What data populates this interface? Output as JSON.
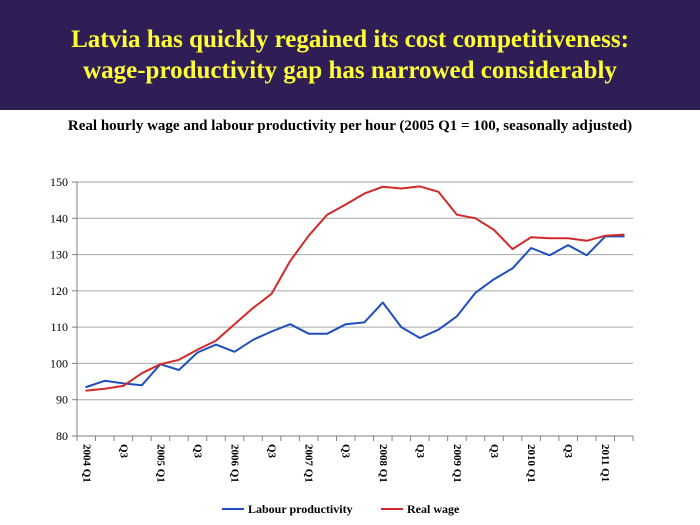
{
  "header": {
    "title_line1": "Latvia has quickly regained its cost competitiveness:",
    "title_line2": "wage-productivity gap has narrowed considerably"
  },
  "colors": {
    "band": "#2f1e55",
    "title": "#ffff33",
    "productivity": "#1f4fbf",
    "wage": "#d12a2a"
  },
  "chart_data": {
    "type": "line",
    "title": "Real hourly wage and labour productivity per hour (2005 Q1 = 100, seasonally adjusted)",
    "xlabel": "",
    "ylabel": "",
    "ylim": [
      80,
      150
    ],
    "yticks": [
      80,
      90,
      100,
      110,
      120,
      130,
      140,
      150
    ],
    "grid": true,
    "legend": "bottom",
    "tick_labels": [
      {
        "index": 0,
        "label": "2004 Q1"
      },
      {
        "index": 2,
        "label": "Q3"
      },
      {
        "index": 4,
        "label": "2005 Q1"
      },
      {
        "index": 6,
        "label": "Q3"
      },
      {
        "index": 8,
        "label": "2006 Q1"
      },
      {
        "index": 10,
        "label": "Q3"
      },
      {
        "index": 12,
        "label": "2007 Q1"
      },
      {
        "index": 14,
        "label": "Q3"
      },
      {
        "index": 16,
        "label": "2008 Q1"
      },
      {
        "index": 18,
        "label": "Q3"
      },
      {
        "index": 20,
        "label": "2009 Q1"
      },
      {
        "index": 22,
        "label": "Q3"
      },
      {
        "index": 24,
        "label": "2010 Q1"
      },
      {
        "index": 26,
        "label": "Q3"
      },
      {
        "index": 28,
        "label": "2011 Q1"
      }
    ],
    "series": [
      {
        "name": "Labour productivity",
        "values": [
          93.5,
          95.2,
          94.5,
          94.0,
          99.8,
          98.2,
          103.0,
          105.2,
          103.2,
          106.5,
          108.8,
          110.8,
          108.2,
          108.2,
          110.8,
          111.3,
          116.8,
          110.0,
          107.0,
          109.3,
          113.0,
          119.5,
          123.2,
          126.2,
          131.8,
          129.8,
          132.6,
          129.8,
          135.0,
          135.0
        ]
      },
      {
        "name": "Real wage",
        "values": [
          92.5,
          93.0,
          93.8,
          97.3,
          99.8,
          101.0,
          103.8,
          106.3,
          110.8,
          115.3,
          119.2,
          128.2,
          135.2,
          141.0,
          143.8,
          146.8,
          148.7,
          148.2,
          148.8,
          147.3,
          141.0,
          140.0,
          136.8,
          131.5,
          134.8,
          134.5,
          134.5,
          133.8,
          135.2,
          135.5
        ]
      }
    ]
  }
}
